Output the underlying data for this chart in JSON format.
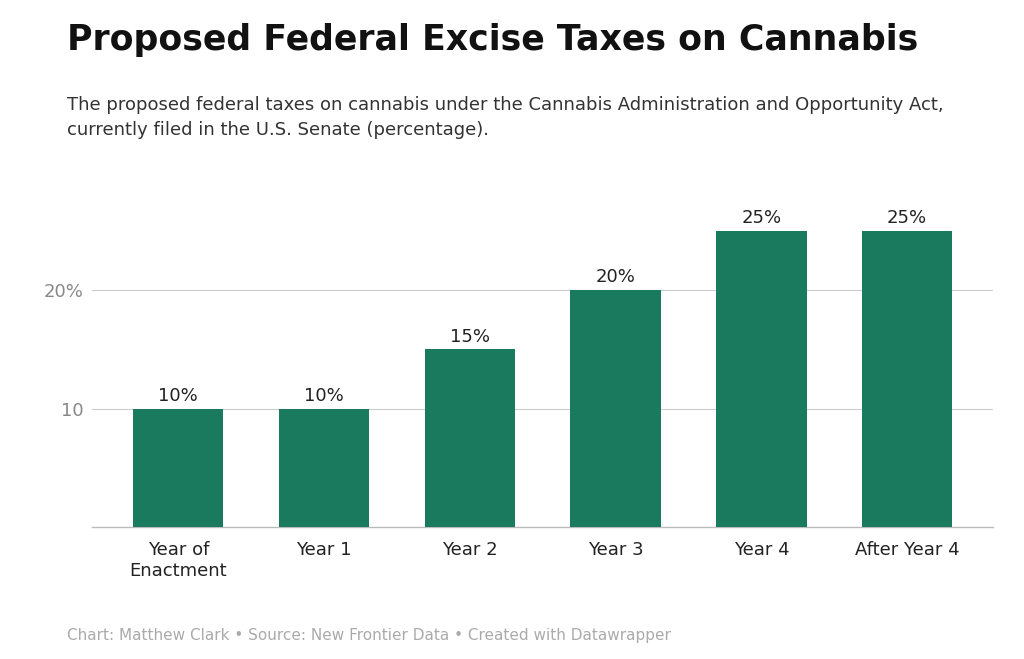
{
  "title": "Proposed Federal Excise Taxes on Cannabis",
  "subtitle": "The proposed federal taxes on cannabis under the Cannabis Administration and Opportunity Act,\ncurrently filed in the U.S. Senate (percentage).",
  "footer": "Chart: Matthew Clark • Source: New Frontier Data • Created with Datawrapper",
  "categories": [
    "Year of\nEnactment",
    "Year 1",
    "Year 2",
    "Year 3",
    "Year 4",
    "After Year 4"
  ],
  "values": [
    10,
    10,
    15,
    20,
    25,
    25
  ],
  "bar_labels": [
    "10%",
    "10%",
    "15%",
    "20%",
    "25%",
    "25%"
  ],
  "bar_color": "#1a7a5e",
  "background_color": "#ffffff",
  "yticks": [
    10,
    20
  ],
  "ytick_labels": [
    "10",
    "20%"
  ],
  "ylim": [
    0,
    30
  ],
  "title_fontsize": 25,
  "subtitle_fontsize": 13,
  "footer_fontsize": 11,
  "bar_label_fontsize": 13,
  "ytick_fontsize": 13,
  "xtick_fontsize": 13
}
